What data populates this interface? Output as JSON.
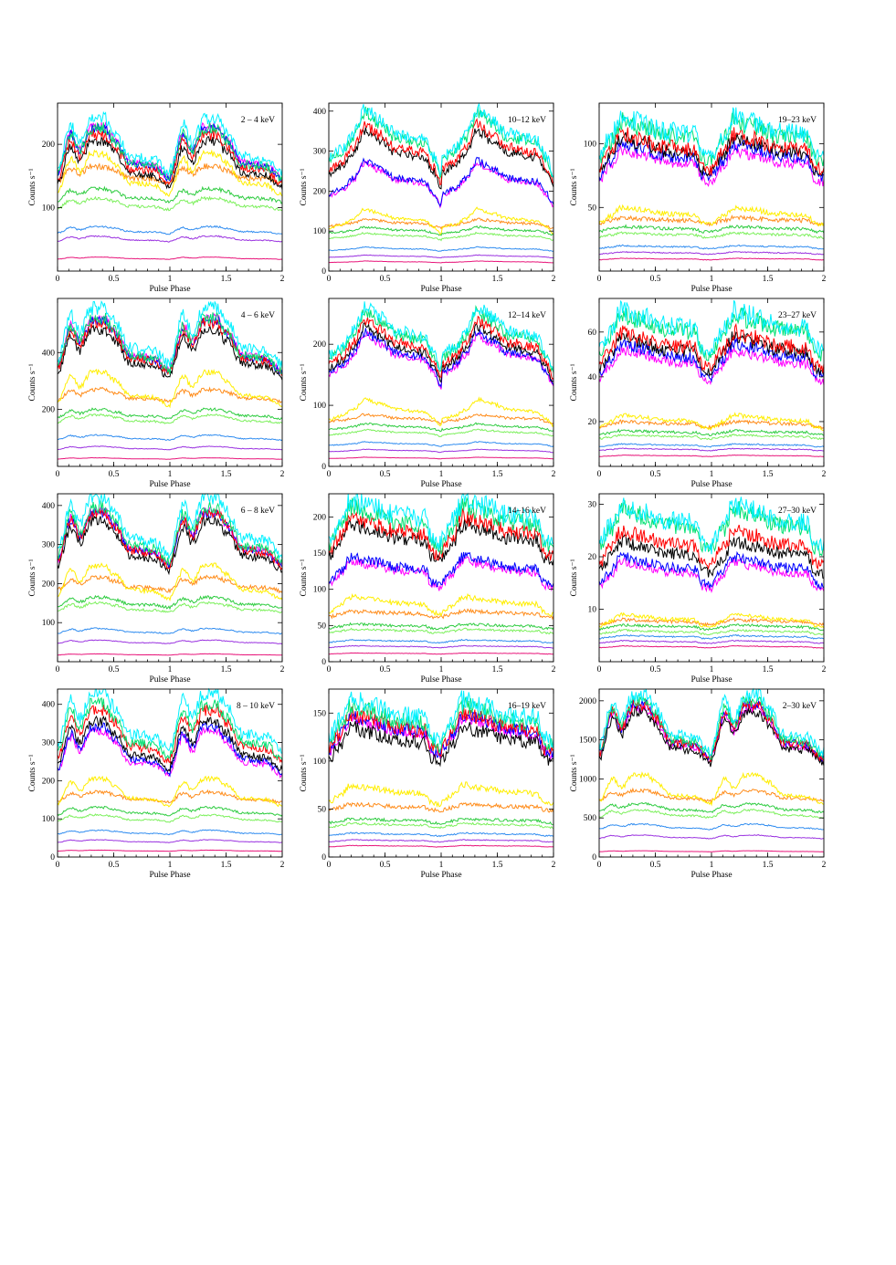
{
  "figure": {
    "xlabel": "Pulse Phase",
    "ylabel": "Counts s⁻¹",
    "series_colors": [
      "#e8157a",
      "#9a32e0",
      "#2f8cf0",
      "#7cf05c",
      "#2ecc40",
      "#ff8c1a",
      "#ffee00",
      "#ff00ff",
      "#0000ff",
      "#000000",
      "#ff0000",
      "#00e070",
      "#00f0ff"
    ]
  },
  "chart_data": [
    {
      "type": "line",
      "title": "2 – 4 keV",
      "xlim": [
        0,
        2
      ],
      "ylim": [
        0,
        265
      ],
      "xticks": [
        0,
        0.5,
        1,
        1.5,
        2
      ],
      "yticks": [
        100,
        200
      ],
      "xlabel": "Pulse Phase",
      "ylabel": "Counts s⁻¹",
      "shape": "soft",
      "profile": {
        "x": [
          0,
          0.12,
          0.2,
          0.3,
          0.42,
          0.5,
          0.65,
          0.85,
          1.0
        ],
        "y": [
          0.42,
          0.92,
          0.72,
          1.0,
          1.0,
          0.85,
          0.55,
          0.52,
          0.36
        ]
      },
      "series_peaks": [
        22,
        55,
        70,
        115,
        130,
        165,
        185,
        228,
        225,
        205,
        215,
        225,
        240
      ]
    },
    {
      "type": "line",
      "title": "10–12 keV",
      "xlim": [
        0,
        2
      ],
      "ylim": [
        0,
        420
      ],
      "xticks": [
        0,
        0.5,
        1,
        1.5,
        2
      ],
      "yticks": [
        0,
        100,
        200,
        300,
        400
      ],
      "xlabel": "Pulse Phase",
      "ylabel": "Counts s⁻¹",
      "shape": "mid",
      "profile": {
        "x": [
          0,
          0.12,
          0.22,
          0.32,
          0.45,
          0.6,
          0.85,
          0.93,
          1.0
        ],
        "y": [
          0.45,
          0.55,
          0.72,
          1.0,
          0.88,
          0.72,
          0.66,
          0.48,
          0.28
        ]
      },
      "series_peaks": [
        25,
        40,
        60,
        95,
        110,
        130,
        155,
        270,
        275,
        350,
        365,
        395,
        405
      ]
    },
    {
      "type": "line",
      "title": "19–23 keV",
      "xlim": [
        0,
        2
      ],
      "ylim": [
        0,
        132
      ],
      "xticks": [
        0,
        0.5,
        1,
        1.5,
        2
      ],
      "yticks": [
        50,
        100
      ],
      "xlabel": "Pulse Phase",
      "ylabel": "Counts s⁻¹",
      "shape": "hard",
      "profile": {
        "x": [
          0,
          0.1,
          0.2,
          0.35,
          0.6,
          0.85,
          0.92,
          1.0
        ],
        "y": [
          0.45,
          0.7,
          1.0,
          0.92,
          0.78,
          0.74,
          0.45,
          0.4
        ]
      },
      "series_peaks": [
        10,
        15,
        20,
        30,
        35,
        42,
        50,
        95,
        100,
        105,
        108,
        118,
        122
      ]
    },
    {
      "type": "line",
      "title": "4 – 6 keV",
      "xlim": [
        0,
        2
      ],
      "ylim": [
        0,
        590
      ],
      "xticks": [
        0,
        0.5,
        1,
        1.5,
        2
      ],
      "yticks": [
        200,
        400
      ],
      "xlabel": "Pulse Phase",
      "ylabel": "Counts s⁻¹",
      "shape": "soft",
      "profile": {
        "x": [
          0,
          0.12,
          0.2,
          0.3,
          0.42,
          0.5,
          0.65,
          0.85,
          1.0
        ],
        "y": [
          0.42,
          0.92,
          0.72,
          1.0,
          1.0,
          0.85,
          0.55,
          0.52,
          0.36
        ]
      },
      "series_peaks": [
        30,
        70,
        110,
        180,
        200,
        270,
        330,
        520,
        510,
        480,
        505,
        520,
        555
      ]
    },
    {
      "type": "line",
      "title": "12–14 keV",
      "xlim": [
        0,
        2
      ],
      "ylim": [
        0,
        275
      ],
      "xticks": [
        0,
        0.5,
        1,
        1.5,
        2
      ],
      "yticks": [
        0,
        100,
        200
      ],
      "xlabel": "Pulse Phase",
      "ylabel": "Counts s⁻¹",
      "shape": "mid",
      "profile": {
        "x": [
          0,
          0.12,
          0.22,
          0.32,
          0.45,
          0.6,
          0.85,
          0.93,
          1.0
        ],
        "y": [
          0.45,
          0.55,
          0.72,
          1.0,
          0.88,
          0.72,
          0.66,
          0.48,
          0.28
        ]
      },
      "series_peaks": [
        15,
        28,
        40,
        60,
        70,
        85,
        110,
        215,
        220,
        230,
        240,
        255,
        262
      ]
    },
    {
      "type": "line",
      "title": "23–27 keV",
      "xlim": [
        0,
        2
      ],
      "ylim": [
        0,
        75
      ],
      "xticks": [
        0,
        0.5,
        1,
        1.5,
        2
      ],
      "yticks": [
        20,
        40,
        60
      ],
      "xlabel": "Pulse Phase",
      "ylabel": "Counts s⁻¹",
      "shape": "hard",
      "profile": {
        "x": [
          0,
          0.1,
          0.2,
          0.35,
          0.6,
          0.85,
          0.92,
          1.0
        ],
        "y": [
          0.45,
          0.7,
          1.0,
          0.92,
          0.78,
          0.74,
          0.45,
          0.4
        ]
      },
      "series_peaks": [
        5,
        8,
        10,
        14,
        16,
        20,
        23,
        52,
        55,
        58,
        60,
        68,
        70
      ]
    },
    {
      "type": "line",
      "title": "6 – 8 keV",
      "xlim": [
        0,
        2
      ],
      "ylim": [
        0,
        430
      ],
      "xticks": [
        0,
        0.5,
        1,
        1.5,
        2
      ],
      "yticks": [
        100,
        200,
        300,
        400
      ],
      "xlabel": "Pulse Phase",
      "ylabel": "Counts s⁻¹",
      "shape": "soft",
      "profile": {
        "x": [
          0,
          0.12,
          0.2,
          0.3,
          0.42,
          0.5,
          0.65,
          0.85,
          1.0
        ],
        "y": [
          0.42,
          0.92,
          0.72,
          1.0,
          1.0,
          0.85,
          0.55,
          0.52,
          0.36
        ]
      },
      "series_peaks": [
        20,
        55,
        85,
        150,
        165,
        215,
        245,
        385,
        380,
        360,
        380,
        395,
        420
      ]
    },
    {
      "type": "line",
      "title": "14–16 keV",
      "xlim": [
        0,
        2
      ],
      "ylim": [
        0,
        232
      ],
      "xticks": [
        0,
        0.5,
        1,
        1.5,
        2
      ],
      "yticks": [
        0,
        50,
        100,
        150,
        200
      ],
      "xlabel": "Pulse Phase",
      "ylabel": "Counts s⁻¹",
      "shape": "hard",
      "profile": {
        "x": [
          0,
          0.1,
          0.2,
          0.35,
          0.6,
          0.85,
          0.92,
          1.0
        ],
        "y": [
          0.45,
          0.7,
          1.0,
          0.92,
          0.78,
          0.74,
          0.45,
          0.4
        ]
      },
      "series_peaks": [
        12,
        22,
        30,
        45,
        52,
        70,
        90,
        140,
        145,
        190,
        200,
        215,
        225
      ]
    },
    {
      "type": "line",
      "title": "27–30 keV",
      "xlim": [
        0,
        2
      ],
      "ylim": [
        0,
        32
      ],
      "xticks": [
        0,
        0.5,
        1,
        1.5,
        2
      ],
      "yticks": [
        10,
        20,
        30
      ],
      "xlabel": "Pulse Phase",
      "ylabel": "Counts s⁻¹",
      "shape": "hard",
      "profile": {
        "x": [
          0,
          0.1,
          0.2,
          0.35,
          0.6,
          0.85,
          0.92,
          1.0
        ],
        "y": [
          0.45,
          0.7,
          1.0,
          0.92,
          0.78,
          0.74,
          0.45,
          0.4
        ]
      },
      "series_peaks": [
        3,
        4,
        5,
        6,
        7,
        8,
        9,
        19,
        20,
        23,
        25,
        29,
        30
      ]
    },
    {
      "type": "line",
      "title": "8 – 10 keV",
      "xlim": [
        0,
        2
      ],
      "ylim": [
        0,
        440
      ],
      "xticks": [
        0,
        0.5,
        1,
        1.5,
        2
      ],
      "yticks": [
        0,
        100,
        200,
        300,
        400
      ],
      "xlabel": "Pulse Phase",
      "ylabel": "Counts s⁻¹",
      "shape": "soft",
      "profile": {
        "x": [
          0,
          0.12,
          0.2,
          0.3,
          0.42,
          0.5,
          0.65,
          0.85,
          1.0
        ],
        "y": [
          0.42,
          0.92,
          0.72,
          1.0,
          1.0,
          0.85,
          0.55,
          0.52,
          0.36
        ]
      },
      "series_peaks": [
        18,
        45,
        70,
        110,
        130,
        170,
        205,
        330,
        340,
        355,
        385,
        400,
        430
      ]
    },
    {
      "type": "line",
      "title": "16–19 keV",
      "xlim": [
        0,
        2
      ],
      "ylim": [
        0,
        175
      ],
      "xticks": [
        0,
        0.5,
        1,
        1.5,
        2
      ],
      "yticks": [
        0,
        50,
        100,
        150
      ],
      "xlabel": "Pulse Phase",
      "ylabel": "Counts s⁻¹",
      "shape": "hard",
      "profile": {
        "x": [
          0,
          0.1,
          0.2,
          0.35,
          0.6,
          0.85,
          0.92,
          1.0
        ],
        "y": [
          0.45,
          0.7,
          1.0,
          0.92,
          0.78,
          0.74,
          0.45,
          0.4
        ]
      },
      "series_peaks": [
        12,
        18,
        25,
        35,
        40,
        55,
        75,
        145,
        148,
        135,
        150,
        158,
        165
      ]
    },
    {
      "type": "line",
      "title": "2–30 keV",
      "xlim": [
        0,
        2
      ],
      "ylim": [
        0,
        2150
      ],
      "xticks": [
        0,
        0.5,
        1,
        1.5,
        2
      ],
      "yticks": [
        0,
        500,
        1000,
        1500,
        2000
      ],
      "xlabel": "Pulse Phase",
      "ylabel": "Counts s⁻¹",
      "shape": "soft",
      "profile": {
        "x": [
          0,
          0.12,
          0.2,
          0.3,
          0.42,
          0.5,
          0.65,
          0.85,
          1.0
        ],
        "y": [
          0.42,
          0.92,
          0.72,
          1.0,
          1.0,
          0.85,
          0.55,
          0.52,
          0.36
        ]
      },
      "series_peaks": [
        80,
        280,
        420,
        600,
        680,
        850,
        1050,
        1900,
        1950,
        1850,
        1950,
        2000,
        2080
      ]
    }
  ]
}
